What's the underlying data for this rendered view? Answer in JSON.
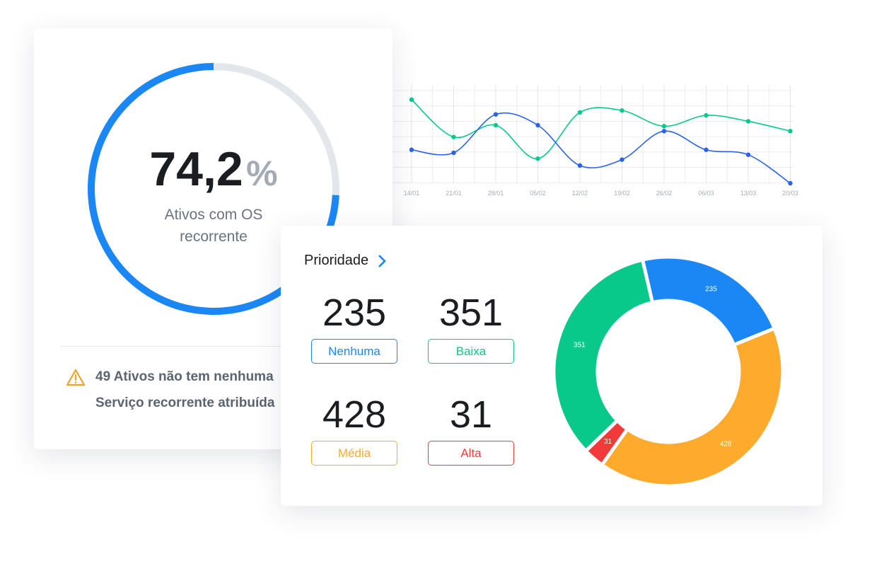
{
  "gauge": {
    "value": 74.2,
    "value_label": "74,2",
    "unit": "%",
    "label": "Ativos com OS recorrente",
    "color": "#1a87f5",
    "track_color": "#e3e6ea"
  },
  "warning": {
    "lines": [
      "49 Ativos não tem nenhuma",
      "Serviço recorrente atribuída"
    ],
    "color": "#f2a22a"
  },
  "trend": {
    "type": "line",
    "x": [
      "14/01",
      "21/01",
      "28/01",
      "05/02",
      "12/02",
      "19/02",
      "26/02",
      "06/03",
      "13/03",
      "20/03"
    ],
    "series": [
      {
        "color": "#08c98a",
        "values": [
          85,
          47,
          59,
          25,
          72,
          74,
          58,
          69,
          63,
          53
        ]
      },
      {
        "color": "#2b63e8",
        "values": [
          34,
          31,
          70,
          59,
          18,
          24,
          53,
          34,
          29,
          0
        ]
      }
    ],
    "ylim": [
      0,
      100
    ],
    "grid": true
  },
  "priority": {
    "title": "Prioridade",
    "items": [
      {
        "value": 235,
        "label": "Nenhuma",
        "color": "#1a87f5"
      },
      {
        "value": 351,
        "label": "Baixa",
        "color": "#08c98a"
      },
      {
        "value": 428,
        "label": "Média",
        "color": "#fdaa2d"
      },
      {
        "value": 31,
        "label": "Alta",
        "color": "#f33a3a"
      }
    ],
    "chart_type": "donut"
  }
}
